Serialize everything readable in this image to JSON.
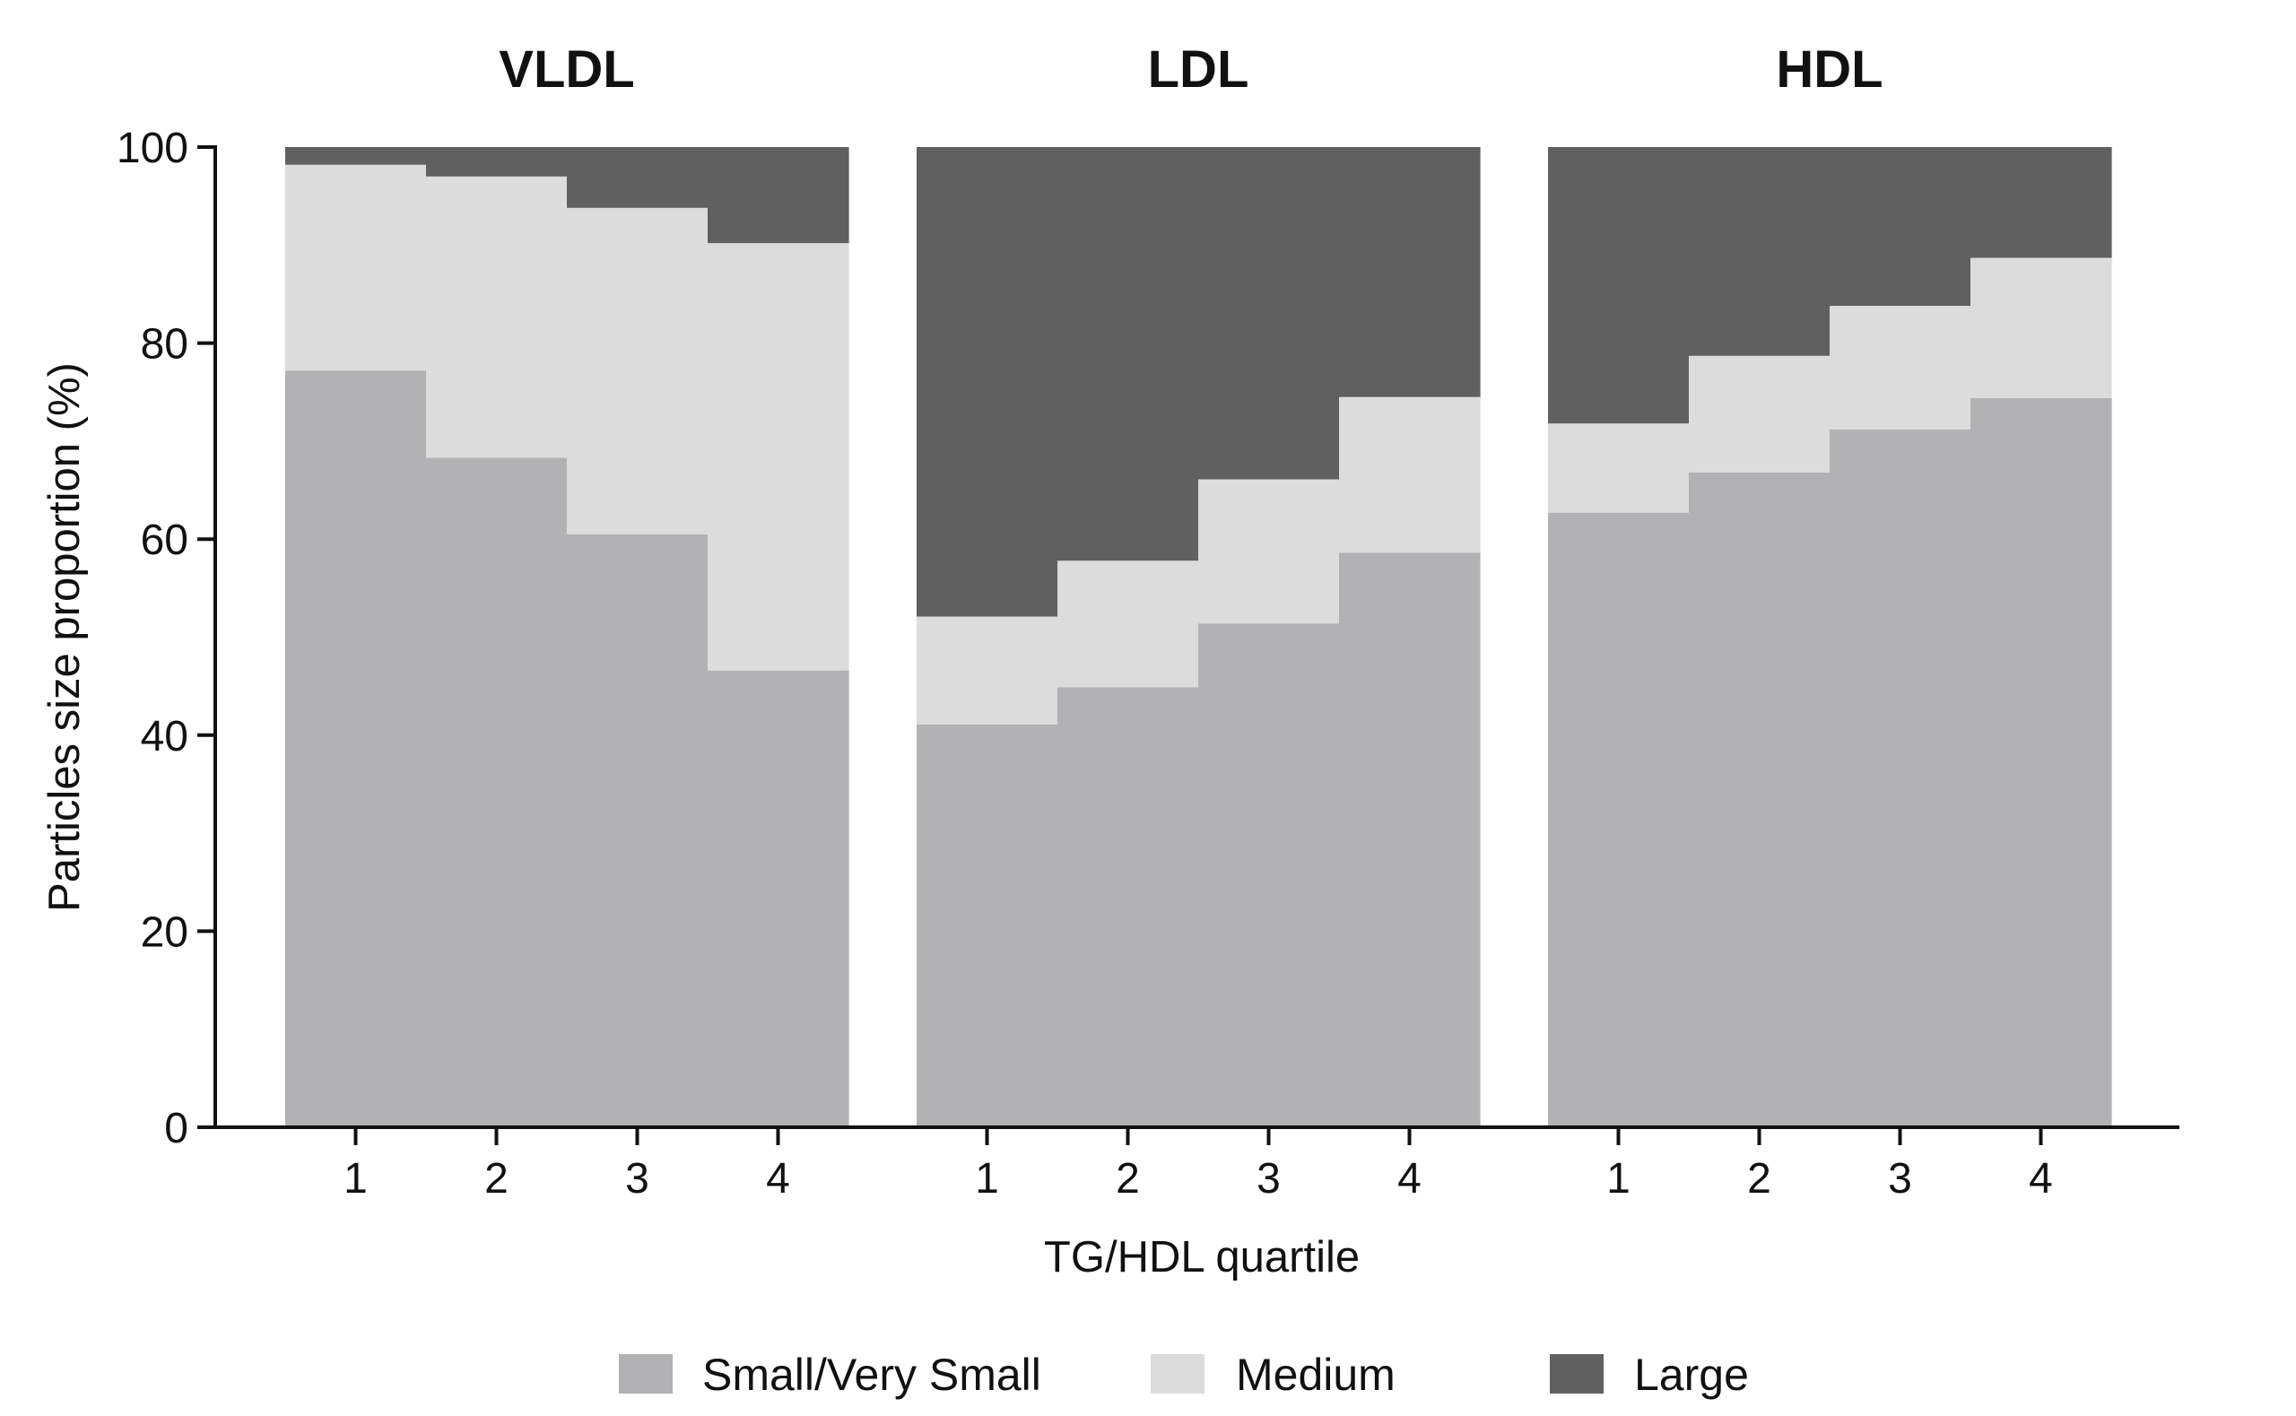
{
  "chart_data": {
    "type": "bar",
    "stacked": true,
    "normalized": true,
    "ylabel": "Particles size proportion (%)",
    "xlabel": "TG/HDL quartile",
    "ylim": [
      0,
      100
    ],
    "yticks": [
      0,
      20,
      40,
      60,
      80,
      100
    ],
    "categories": [
      "1",
      "2",
      "3",
      "4"
    ],
    "legend_position": "bottom",
    "grid": false,
    "colors": {
      "Small/Very Small": "#b2b2b4",
      "Medium": "#dcdcdc",
      "Large": "#606060"
    },
    "panels": [
      {
        "title": "VLDL",
        "series": [
          {
            "name": "Small/Very Small",
            "values": [
              77.2,
              68.3,
              60.5,
              46.6
            ]
          },
          {
            "name": "Medium",
            "values": [
              21.0,
              28.7,
              33.3,
              43.6
            ]
          },
          {
            "name": "Large",
            "values": [
              1.8,
              3.0,
              6.2,
              9.8
            ]
          }
        ]
      },
      {
        "title": "LDL",
        "series": [
          {
            "name": "Small/Very Small",
            "values": [
              41.1,
              44.9,
              51.4,
              58.6
            ]
          },
          {
            "name": "Medium",
            "values": [
              11.0,
              12.9,
              14.7,
              15.9
            ]
          },
          {
            "name": "Large",
            "values": [
              47.9,
              42.2,
              33.9,
              25.5
            ]
          }
        ]
      },
      {
        "title": "HDL",
        "series": [
          {
            "name": "Small/Very Small",
            "values": [
              62.7,
              66.8,
              71.2,
              74.4
            ]
          },
          {
            "name": "Medium",
            "values": [
              9.1,
              11.9,
              12.6,
              14.3
            ]
          },
          {
            "name": "Large",
            "values": [
              28.2,
              21.3,
              16.2,
              11.3
            ]
          }
        ]
      }
    ]
  }
}
